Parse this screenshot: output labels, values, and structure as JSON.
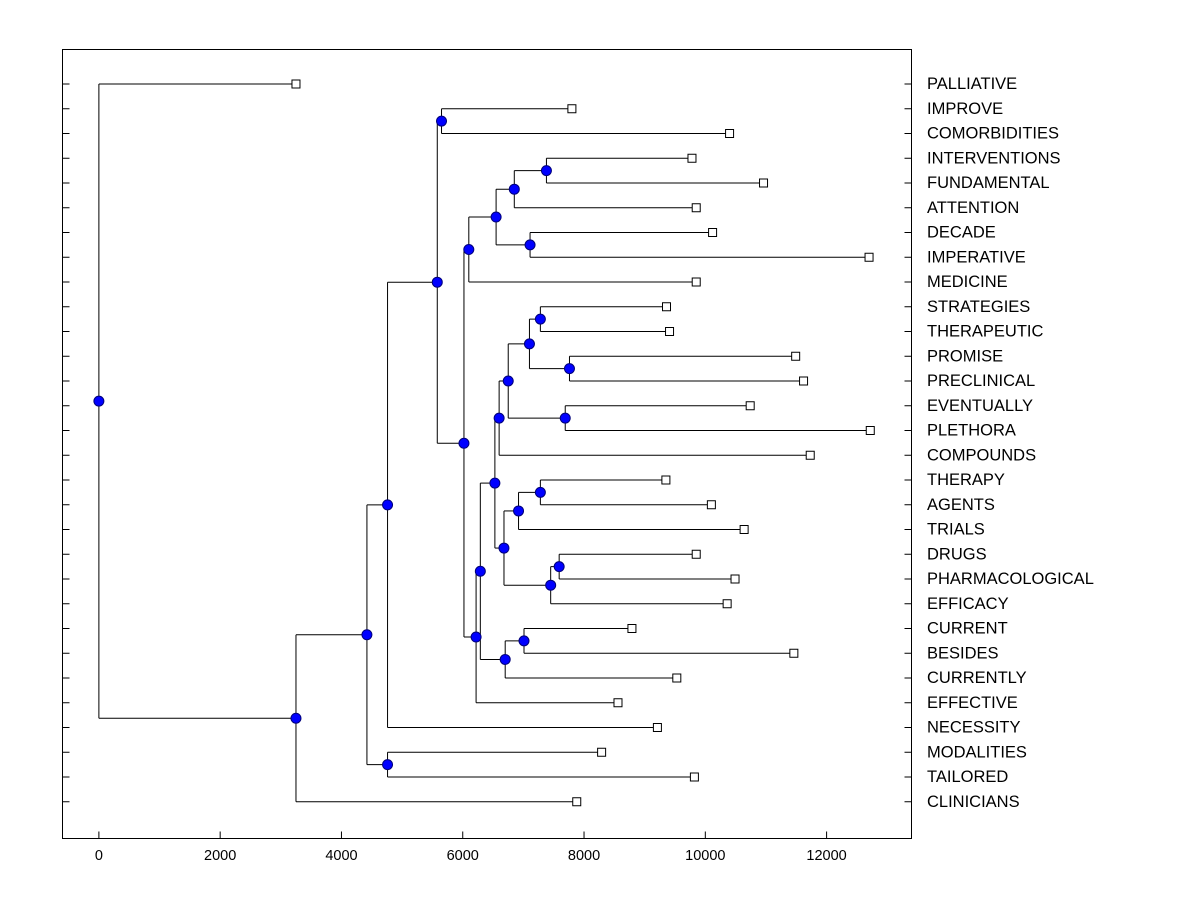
{
  "chart_data": {
    "type": "dendrogram",
    "title": "",
    "xlabel": "",
    "ylabel": "",
    "xlim": [
      -600,
      13400
    ],
    "x_ticks": [
      0,
      2000,
      4000,
      6000,
      8000,
      10000,
      12000
    ],
    "x_tick_labels": [
      "0",
      "2000",
      "4000",
      "6000",
      "8000",
      "10000",
      "12000"
    ],
    "leaves": [
      {
        "label": "PALLIATIVE",
        "x": 3250
      },
      {
        "label": "IMPROVE",
        "x": 7800
      },
      {
        "label": "COMORBIDITIES",
        "x": 10400
      },
      {
        "label": "INTERVENTIONS",
        "x": 9780
      },
      {
        "label": "FUNDAMENTAL",
        "x": 10960
      },
      {
        "label": "ATTENTION",
        "x": 9850
      },
      {
        "label": "DECADE",
        "x": 10120
      },
      {
        "label": "IMPERATIVE",
        "x": 12700
      },
      {
        "label": "MEDICINE",
        "x": 9850
      },
      {
        "label": "STRATEGIES",
        "x": 9360
      },
      {
        "label": "THERAPEUTIC",
        "x": 9410
      },
      {
        "label": "PROMISE",
        "x": 11490
      },
      {
        "label": "PRECLINICAL",
        "x": 11620
      },
      {
        "label": "EVENTUALLY",
        "x": 10740
      },
      {
        "label": "PLETHORA",
        "x": 12720
      },
      {
        "label": "COMPOUNDS",
        "x": 11730
      },
      {
        "label": "THERAPY",
        "x": 9350
      },
      {
        "label": "AGENTS",
        "x": 10100
      },
      {
        "label": "TRIALS",
        "x": 10640
      },
      {
        "label": "DRUGS",
        "x": 9850
      },
      {
        "label": "PHARMACOLOGICAL",
        "x": 10490
      },
      {
        "label": "EFFICACY",
        "x": 10360
      },
      {
        "label": "CURRENT",
        "x": 8790
      },
      {
        "label": "BESIDES",
        "x": 11460
      },
      {
        "label": "CURRENTLY",
        "x": 9530
      },
      {
        "label": "EFFECTIVE",
        "x": 8560
      },
      {
        "label": "NECESSITY",
        "x": 9210
      },
      {
        "label": "MODALITIES",
        "x": 8290
      },
      {
        "label": "TAILORED",
        "x": 9820
      },
      {
        "label": "CLINICIANS",
        "x": 7880
      }
    ],
    "merges": [
      {
        "id": "n_improve_comorb",
        "x": 5650,
        "children": [
          "IMPROVE",
          "COMORBIDITIES"
        ]
      },
      {
        "id": "n_interv_fund",
        "x": 7380,
        "children": [
          "INTERVENTIONS",
          "FUNDAMENTAL"
        ]
      },
      {
        "id": "n_interv_fund_att",
        "x": 6850,
        "children": [
          "n_interv_fund",
          "ATTENTION"
        ]
      },
      {
        "id": "n_decade_imp",
        "x": 7110,
        "children": [
          "DECADE",
          "IMPERATIVE"
        ]
      },
      {
        "id": "n_ifa_di",
        "x": 6550,
        "children": [
          "n_interv_fund_att",
          "n_decade_imp"
        ]
      },
      {
        "id": "n_ifadi_med",
        "x": 6100,
        "children": [
          "n_ifa_di",
          "MEDICINE"
        ]
      },
      {
        "id": "n_strat_ther",
        "x": 7280,
        "children": [
          "STRATEGIES",
          "THERAPEUTIC"
        ]
      },
      {
        "id": "n_prom_precl",
        "x": 7760,
        "children": [
          "PROMISE",
          "PRECLINICAL"
        ]
      },
      {
        "id": "n_st_pp",
        "x": 7100,
        "children": [
          "n_strat_ther",
          "n_prom_precl"
        ]
      },
      {
        "id": "n_event_pleth",
        "x": 7690,
        "children": [
          "EVENTUALLY",
          "PLETHORA"
        ]
      },
      {
        "id": "n_stpp_ep",
        "x": 6750,
        "children": [
          "n_st_pp",
          "n_event_pleth"
        ]
      },
      {
        "id": "n_stppep_comp",
        "x": 6600,
        "children": [
          "n_stpp_ep",
          "COMPOUNDS"
        ]
      },
      {
        "id": "n_therapy_agents",
        "x": 7280,
        "children": [
          "THERAPY",
          "AGENTS"
        ]
      },
      {
        "id": "n_ta_trials",
        "x": 6920,
        "children": [
          "n_therapy_agents",
          "TRIALS"
        ]
      },
      {
        "id": "n_drugs_pharm",
        "x": 7590,
        "children": [
          "DRUGS",
          "PHARMACOLOGICAL"
        ]
      },
      {
        "id": "n_dp_eff",
        "x": 7450,
        "children": [
          "n_drugs_pharm",
          "EFFICACY"
        ]
      },
      {
        "id": "n_tat_dpe",
        "x": 6680,
        "children": [
          "n_ta_trials",
          "n_dp_eff"
        ]
      },
      {
        "id": "n_comp_tatdpe",
        "x": 6530,
        "children": [
          "n_stppep_comp",
          "n_tat_dpe"
        ]
      },
      {
        "id": "n_curr_bes",
        "x": 7010,
        "children": [
          "CURRENT",
          "BESIDES"
        ]
      },
      {
        "id": "n_cb_currently",
        "x": 6700,
        "children": [
          "n_curr_bes",
          "CURRENTLY"
        ]
      },
      {
        "id": "n_big_cbc",
        "x": 6290,
        "children": [
          "n_comp_tatdpe",
          "n_cb_currently"
        ]
      },
      {
        "id": "n_big_effective",
        "x": 6220,
        "children": [
          "n_big_cbc",
          "EFFECTIVE"
        ]
      },
      {
        "id": "n_med_big",
        "x": 6020,
        "children": [
          "n_ifadi_med",
          "n_big_effective"
        ]
      },
      {
        "id": "n_ic_all",
        "x": 5580,
        "children": [
          "n_improve_comorb",
          "n_med_big"
        ]
      },
      {
        "id": "n_ic_necess",
        "x": 4760,
        "children": [
          "n_ic_all",
          "NECESSITY"
        ]
      },
      {
        "id": "n_mod_tail",
        "x": 4760,
        "children": [
          "MODALITIES",
          "TAILORED"
        ]
      },
      {
        "id": "n_icn_mt",
        "x": 4420,
        "children": [
          "n_ic_necess",
          "n_mod_tail"
        ]
      },
      {
        "id": "n_icnmt_clin",
        "x": 3250,
        "children": [
          "n_icn_mt",
          "CLINICIANS"
        ]
      },
      {
        "id": "n_root",
        "x": 0,
        "children": [
          "PALLIATIVE",
          "n_icnmt_clin"
        ]
      }
    ],
    "legend": "none",
    "grid": false
  }
}
